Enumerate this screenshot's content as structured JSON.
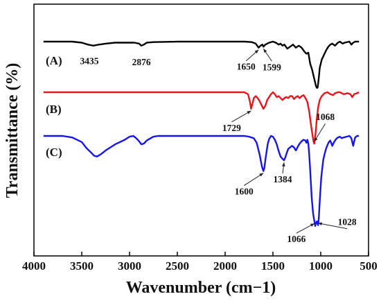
{
  "chart_data": {
    "type": "line",
    "xlabel": "Wavenumber (cm−1)",
    "ylabel": "Transmittance (%)",
    "xlim": [
      4000,
      500
    ],
    "x_reversed": true,
    "grid": false,
    "legend": "none",
    "xticks": [
      4000,
      3500,
      3000,
      2500,
      2000,
      1500,
      1000,
      500
    ],
    "xtick_labels": [
      "4000",
      "3500",
      "3000",
      "2500",
      "2000",
      "1500",
      "1000",
      "500"
    ],
    "y_unit": "arbitrary, curves vertically offset",
    "series": [
      {
        "label": "(A)",
        "color": "#000000",
        "points": [
          [
            3900,
            0
          ],
          [
            3600,
            0
          ],
          [
            3500,
            1
          ],
          [
            3435,
            3
          ],
          [
            3380,
            4
          ],
          [
            3320,
            3
          ],
          [
            3250,
            2
          ],
          [
            3150,
            1
          ],
          [
            3050,
            1
          ],
          [
            2950,
            1
          ],
          [
            2900,
            2
          ],
          [
            2876,
            4
          ],
          [
            2850,
            3
          ],
          [
            2820,
            1
          ],
          [
            2750,
            0.5
          ],
          [
            2500,
            0
          ],
          [
            2200,
            0
          ],
          [
            2000,
            0
          ],
          [
            1800,
            0
          ],
          [
            1720,
            0.5
          ],
          [
            1680,
            2
          ],
          [
            1650,
            6
          ],
          [
            1630,
            4
          ],
          [
            1610,
            3
          ],
          [
            1599,
            5
          ],
          [
            1580,
            3
          ],
          [
            1540,
            1
          ],
          [
            1500,
            0
          ],
          [
            1470,
            1
          ],
          [
            1440,
            3
          ],
          [
            1420,
            2
          ],
          [
            1400,
            4
          ],
          [
            1380,
            3
          ],
          [
            1350,
            7
          ],
          [
            1320,
            5
          ],
          [
            1290,
            3
          ],
          [
            1260,
            6
          ],
          [
            1230,
            4
          ],
          [
            1200,
            6
          ],
          [
            1170,
            10
          ],
          [
            1150,
            12
          ],
          [
            1130,
            11
          ],
          [
            1110,
            22
          ],
          [
            1090,
            28
          ],
          [
            1070,
            36
          ],
          [
            1060,
            40
          ],
          [
            1050,
            44
          ],
          [
            1040,
            46
          ],
          [
            1035,
            46
          ],
          [
            1030,
            44
          ],
          [
            1020,
            36
          ],
          [
            1010,
            26
          ],
          [
            990,
            18
          ],
          [
            960,
            12
          ],
          [
            940,
            8
          ],
          [
            920,
            5
          ],
          [
            900,
            3
          ],
          [
            880,
            2
          ],
          [
            850,
            4
          ],
          [
            820,
            1
          ],
          [
            800,
            0
          ],
          [
            770,
            2
          ],
          [
            750,
            1
          ],
          [
            700,
            0
          ],
          [
            680,
            3
          ],
          [
            660,
            1
          ],
          [
            640,
            0
          ],
          [
            600,
            0
          ]
        ]
      },
      {
        "label": "(B)",
        "color": "#e8141c",
        "points": [
          [
            3900,
            0
          ],
          [
            3500,
            0
          ],
          [
            3000,
            0
          ],
          [
            2500,
            0
          ],
          [
            2000,
            0
          ],
          [
            1800,
            0
          ],
          [
            1760,
            2
          ],
          [
            1740,
            10
          ],
          [
            1729,
            17
          ],
          [
            1715,
            12
          ],
          [
            1700,
            6
          ],
          [
            1680,
            4
          ],
          [
            1660,
            6
          ],
          [
            1640,
            9
          ],
          [
            1620,
            13
          ],
          [
            1600,
            17
          ],
          [
            1580,
            14
          ],
          [
            1560,
            8
          ],
          [
            1540,
            5
          ],
          [
            1520,
            2
          ],
          [
            1500,
            0
          ],
          [
            1480,
            2
          ],
          [
            1460,
            5
          ],
          [
            1440,
            4
          ],
          [
            1420,
            6
          ],
          [
            1400,
            8
          ],
          [
            1380,
            6
          ],
          [
            1360,
            5
          ],
          [
            1340,
            6
          ],
          [
            1320,
            4
          ],
          [
            1300,
            4
          ],
          [
            1280,
            7
          ],
          [
            1260,
            5
          ],
          [
            1240,
            4
          ],
          [
            1220,
            6
          ],
          [
            1200,
            4
          ],
          [
            1180,
            3
          ],
          [
            1160,
            6
          ],
          [
            1140,
            10
          ],
          [
            1120,
            20
          ],
          [
            1100,
            35
          ],
          [
            1085,
            45
          ],
          [
            1075,
            51
          ],
          [
            1068,
            53
          ],
          [
            1060,
            48
          ],
          [
            1050,
            38
          ],
          [
            1040,
            26
          ],
          [
            1025,
            14
          ],
          [
            1010,
            8
          ],
          [
            990,
            4
          ],
          [
            960,
            1
          ],
          [
            930,
            0
          ],
          [
            900,
            2
          ],
          [
            870,
            3
          ],
          [
            850,
            1
          ],
          [
            820,
            0
          ],
          [
            800,
            0
          ],
          [
            760,
            2
          ],
          [
            720,
            1
          ],
          [
            690,
            2
          ],
          [
            670,
            5
          ],
          [
            650,
            2
          ],
          [
            620,
            1
          ],
          [
            600,
            0
          ]
        ]
      },
      {
        "label": "(C)",
        "color": "#1414ee",
        "points": [
          [
            3900,
            0
          ],
          [
            3700,
            0
          ],
          [
            3600,
            2
          ],
          [
            3500,
            8
          ],
          [
            3450,
            16
          ],
          [
            3400,
            22
          ],
          [
            3370,
            26
          ],
          [
            3340,
            27
          ],
          [
            3300,
            24
          ],
          [
            3250,
            19
          ],
          [
            3200,
            15
          ],
          [
            3150,
            11
          ],
          [
            3100,
            8
          ],
          [
            3050,
            5
          ],
          [
            3000,
            1
          ],
          [
            2960,
            0
          ],
          [
            2930,
            3
          ],
          [
            2900,
            7
          ],
          [
            2876,
            11
          ],
          [
            2850,
            10
          ],
          [
            2820,
            6
          ],
          [
            2780,
            3
          ],
          [
            2750,
            1
          ],
          [
            2700,
            0
          ],
          [
            2500,
            0
          ],
          [
            2200,
            0
          ],
          [
            2000,
            0
          ],
          [
            1800,
            0
          ],
          [
            1750,
            1
          ],
          [
            1700,
            3
          ],
          [
            1670,
            9
          ],
          [
            1640,
            24
          ],
          [
            1615,
            40
          ],
          [
            1600,
            46
          ],
          [
            1590,
            42
          ],
          [
            1575,
            28
          ],
          [
            1555,
            11
          ],
          [
            1540,
            4
          ],
          [
            1520,
            0
          ],
          [
            1500,
            1
          ],
          [
            1480,
            5
          ],
          [
            1460,
            11
          ],
          [
            1440,
            20
          ],
          [
            1420,
            27
          ],
          [
            1400,
            30
          ],
          [
            1384,
            32
          ],
          [
            1370,
            28
          ],
          [
            1355,
            22
          ],
          [
            1340,
            17
          ],
          [
            1320,
            15
          ],
          [
            1300,
            13
          ],
          [
            1280,
            15
          ],
          [
            1260,
            19
          ],
          [
            1240,
            14
          ],
          [
            1220,
            10
          ],
          [
            1200,
            7
          ],
          [
            1180,
            5
          ],
          [
            1160,
            6
          ],
          [
            1150,
            9
          ],
          [
            1140,
            5
          ],
          [
            1130,
            10
          ],
          [
            1120,
            25
          ],
          [
            1110,
            45
          ],
          [
            1095,
            80
          ],
          [
            1080,
            102
          ],
          [
            1066,
            112
          ],
          [
            1058,
            118
          ],
          [
            1050,
            114
          ],
          [
            1040,
            112
          ],
          [
            1028,
            117
          ],
          [
            1020,
            108
          ],
          [
            1010,
            85
          ],
          [
            995,
            55
          ],
          [
            975,
            32
          ],
          [
            960,
            24
          ],
          [
            945,
            17
          ],
          [
            930,
            12
          ],
          [
            915,
            8
          ],
          [
            900,
            6
          ],
          [
            880,
            13
          ],
          [
            860,
            8
          ],
          [
            840,
            4
          ],
          [
            820,
            2
          ],
          [
            800,
            1
          ],
          [
            780,
            3
          ],
          [
            760,
            2
          ],
          [
            730,
            1
          ],
          [
            700,
            0
          ],
          [
            680,
            3
          ],
          [
            670,
            8
          ],
          [
            660,
            13
          ],
          [
            650,
            7
          ],
          [
            640,
            2
          ],
          [
            620,
            0
          ],
          [
            600,
            0
          ]
        ]
      }
    ],
    "annotations": [
      {
        "series": "(A)",
        "text": "3435",
        "x": 3435
      },
      {
        "series": "(A)",
        "text": "2876",
        "x": 2876
      },
      {
        "series": "(A)",
        "text": "1650",
        "x": 1650
      },
      {
        "series": "(A)",
        "text": "1599",
        "x": 1599
      },
      {
        "series": "(B)",
        "text": "1729",
        "x": 1729
      },
      {
        "series": "(B)",
        "text": "1068",
        "x": 1068
      },
      {
        "series": "(C)",
        "text": "1600",
        "x": 1600
      },
      {
        "series": "(C)",
        "text": "1384",
        "x": 1384
      },
      {
        "series": "(C)",
        "text": "1066",
        "x": 1066
      },
      {
        "series": "(C)",
        "text": "1028",
        "x": 1028
      }
    ]
  }
}
